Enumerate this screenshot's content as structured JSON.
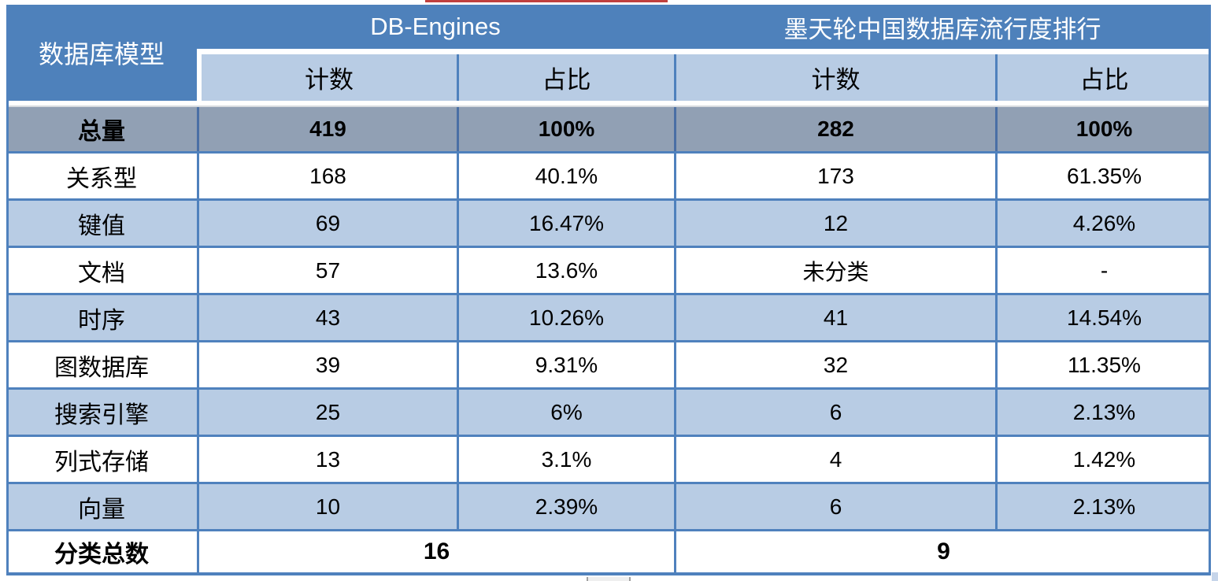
{
  "chart_data": {
    "type": "table",
    "corner_header": "数据库模型",
    "column_groups": [
      {
        "label": "DB-Engines"
      },
      {
        "label": "墨天轮中国数据库流行度排行"
      }
    ],
    "sub_headers": [
      "计数",
      "占比",
      "计数",
      "占比"
    ],
    "total_row": {
      "label": "总量",
      "values": [
        "419",
        "100%",
        "282",
        "100%"
      ]
    },
    "rows": [
      {
        "label": "关系型",
        "values": [
          "168",
          "40.1%",
          "173",
          "61.35%"
        ]
      },
      {
        "label": "键值",
        "values": [
          "69",
          "16.47%",
          "12",
          "4.26%"
        ]
      },
      {
        "label": "文档",
        "values": [
          "57",
          "13.6%",
          "未分类",
          "-"
        ]
      },
      {
        "label": "时序",
        "values": [
          "43",
          "10.26%",
          "41",
          "14.54%"
        ]
      },
      {
        "label": "图数据库",
        "values": [
          "39",
          "9.31%",
          "32",
          "11.35%"
        ]
      },
      {
        "label": "搜索引擎",
        "values": [
          "25",
          "6%",
          "6",
          "2.13%"
        ]
      },
      {
        "label": "列式存储",
        "values": [
          "13",
          "3.1%",
          "4",
          "1.42%"
        ]
      },
      {
        "label": "向量",
        "values": [
          "10",
          "2.39%",
          "6",
          "2.13%"
        ]
      }
    ],
    "footer_row": {
      "label": "分类总数",
      "values": [
        "16",
        "9"
      ]
    },
    "layout_hints": {
      "striped": true,
      "grid": "blue borders"
    }
  },
  "colors": {
    "header_blue": "#4E81BB",
    "band_light_blue": "#B8CCE4",
    "total_row_gray": "#91A0B4",
    "border_blue": "#4F81BD",
    "total_divider_blue": "#4A6FA5",
    "underline_red": "#C0403E"
  }
}
